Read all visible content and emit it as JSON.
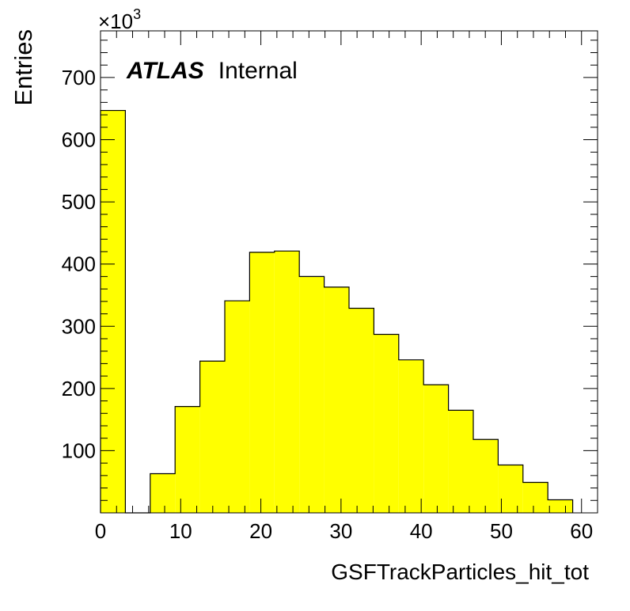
{
  "chart_data": {
    "type": "bar",
    "histogram": true,
    "bin_edges": [
      0,
      3.1,
      6.2,
      9.3,
      12.4,
      15.5,
      18.6,
      21.7,
      24.8,
      27.9,
      31.0,
      34.1,
      37.2,
      40.3,
      43.4,
      46.5,
      49.6,
      52.7,
      55.8,
      58.9
    ],
    "values": [
      647,
      0,
      63,
      171,
      244,
      341,
      419,
      421,
      380,
      363,
      329,
      287,
      246,
      206,
      165,
      118,
      77,
      49,
      21
    ],
    "xlabel": "GSFTrackParticles_hit_tot",
    "ylabel": "Entries",
    "y_multiplier": "×10",
    "y_multiplier_exp": "3",
    "xlim": [
      0,
      62
    ],
    "ylim": [
      0,
      775
    ],
    "x_ticks": [
      0,
      10,
      20,
      30,
      40,
      50,
      60
    ],
    "y_ticks": [
      100,
      200,
      300,
      400,
      500,
      600,
      700
    ],
    "fill_color": "#ffff00",
    "line_color": "#000000",
    "annotation": {
      "bold": "ATLAS",
      "normal": "Internal"
    }
  }
}
